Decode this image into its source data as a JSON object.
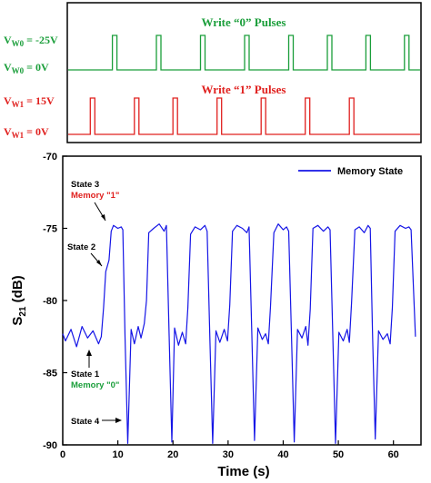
{
  "colors": {
    "green": "#1a9e3a",
    "red": "#e0201e",
    "blue": "#1515e6",
    "black": "#000000"
  },
  "chart_data": [
    {
      "type": "line",
      "panel": "pulse-diagram",
      "write0": {
        "title": "Write “0” Pulses",
        "level_high": {
          "main": "V",
          "sub": "W0",
          "rest": " = 0V"
        },
        "level_low": {
          "main": "V",
          "sub": "W0",
          "rest": " = -25V"
        },
        "pulse_times": [
          9,
          17,
          25,
          33,
          41,
          48,
          55,
          62
        ]
      },
      "write1": {
        "title": "Write “1” Pulses",
        "level_high": {
          "main": "V",
          "sub": "W1",
          "rest": " = 15V"
        },
        "level_low": {
          "main": "V",
          "sub": "W1",
          "rest": " = 0V"
        },
        "pulse_times": [
          5,
          13,
          20,
          28,
          36,
          44,
          52
        ]
      }
    },
    {
      "type": "line",
      "panel": "memory-state",
      "series": [
        {
          "name": "Memory State",
          "x": [
            0,
            0.5,
            1.5,
            2.5,
            3.5,
            4.5,
            5.5,
            6.5,
            7.0,
            7.4,
            7.8,
            8.4,
            8.8,
            9.2,
            10.0,
            10.6,
            10.9,
            11.3,
            11.8,
            12.4,
            13.0,
            13.7,
            14.2,
            14.8,
            15.2,
            15.6,
            16.5,
            17.5,
            18.4,
            18.8,
            19.3,
            19.8,
            20.3,
            21.0,
            21.7,
            22.3,
            22.7,
            23.2,
            24.0,
            25.0,
            25.8,
            26.2,
            26.7,
            27.2,
            27.8,
            28.5,
            29.3,
            29.9,
            30.3,
            30.8,
            31.6,
            32.6,
            33.4,
            33.8,
            34.3,
            34.8,
            35.4,
            36.2,
            36.8,
            37.3,
            37.7,
            38.3,
            39.1,
            40.0,
            40.6,
            41.0,
            41.5,
            42.0,
            42.6,
            43.4,
            44.1,
            44.5,
            44.9,
            45.4,
            46.3,
            47.3,
            48.1,
            48.5,
            49.0,
            49.5,
            50.1,
            50.9,
            51.6,
            52.0,
            52.4,
            53.0,
            53.8,
            54.7,
            55.4,
            55.8,
            56.2,
            56.7,
            57.3,
            58.1,
            58.9,
            59.4,
            59.8,
            60.3,
            61.2,
            62.2,
            62.8,
            63.2,
            64.0
          ],
          "y": [
            -82.3,
            -82.8,
            -82.0,
            -83.2,
            -81.8,
            -82.6,
            -82.1,
            -83.0,
            -82.5,
            -80.5,
            -78.0,
            -77.2,
            -75.2,
            -74.8,
            -75.0,
            -74.9,
            -75.1,
            -82.5,
            -89.9,
            -82.0,
            -83.0,
            -81.8,
            -82.6,
            -81.6,
            -80.0,
            -75.3,
            -75.0,
            -74.7,
            -75.2,
            -74.8,
            -82.4,
            -89.8,
            -81.9,
            -83.1,
            -82.2,
            -83.0,
            -80.5,
            -75.4,
            -74.9,
            -75.1,
            -74.8,
            -75.2,
            -82.6,
            -89.9,
            -82.1,
            -82.9,
            -82.0,
            -82.8,
            -80.3,
            -75.2,
            -74.8,
            -75.0,
            -75.3,
            -74.9,
            -82.2,
            -89.7,
            -81.9,
            -82.7,
            -82.3,
            -83.0,
            -80.4,
            -75.3,
            -74.7,
            -75.1,
            -74.9,
            -75.2,
            -82.5,
            -89.8,
            -82.0,
            -82.6,
            -81.8,
            -83.1,
            -80.6,
            -75.0,
            -74.8,
            -75.2,
            -74.9,
            -75.1,
            -82.4,
            -89.9,
            -82.2,
            -82.8,
            -82.0,
            -82.9,
            -80.2,
            -75.1,
            -74.9,
            -75.3,
            -74.8,
            -75.0,
            -82.3,
            -89.6,
            -82.1,
            -82.7,
            -82.3,
            -83.0,
            -80.5,
            -75.2,
            -74.8,
            -75.0,
            -74.9,
            -75.1,
            -82.5
          ]
        }
      ],
      "title": "",
      "xlabel": "Time (s)",
      "ylabel": {
        "main": "S",
        "sub": "21",
        "rest": " (dB)"
      },
      "xlim": [
        0,
        65
      ],
      "ylim": [
        -90,
        -70
      ],
      "x_ticks": [
        0,
        10,
        20,
        30,
        40,
        50,
        60
      ],
      "y_ticks": [
        -90,
        -85,
        -80,
        -75,
        -70
      ],
      "legend_position": "top-right",
      "annotations": [
        {
          "lines": [
            "State 3"
          ],
          "line2": "Memory \"1\"",
          "line2_color": "red"
        },
        {
          "lines": [
            "State 2"
          ]
        },
        {
          "lines": [
            "State 1"
          ],
          "line2": "Memory \"0\"",
          "line2_color": "green"
        },
        {
          "lines": [
            "State 4"
          ]
        }
      ]
    }
  ]
}
